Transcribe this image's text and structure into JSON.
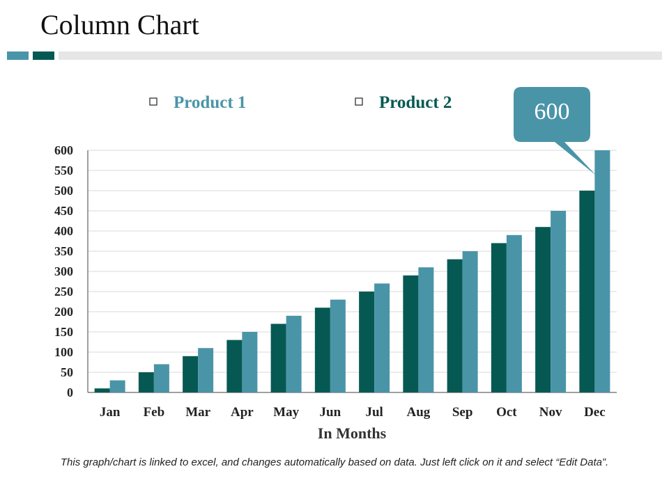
{
  "page": {
    "title": "Column Chart",
    "footer_note": "This graph/chart is linked to excel, and changes automatically based on data. Just left click on it and select “Edit Data”."
  },
  "colors": {
    "product1": "#4a94a8",
    "product2": "#065952",
    "gridline": "#d9d9d9",
    "axis": "#404040",
    "callout": "#4a94a8"
  },
  "chart_data": {
    "type": "bar",
    "title": "",
    "xlabel": "In Months",
    "ylabel": "",
    "ylim": [
      0,
      600
    ],
    "yticks": [
      0,
      50,
      100,
      150,
      200,
      250,
      300,
      350,
      400,
      450,
      500,
      550,
      600
    ],
    "grid": true,
    "legend_position": "top",
    "categories": [
      "Jan",
      "Feb",
      "Mar",
      "Apr",
      "May",
      "Jun",
      "Jul",
      "Aug",
      "Sep",
      "Oct",
      "Nov",
      "Dec"
    ],
    "series": [
      {
        "name": "Product 2",
        "values": [
          10,
          50,
          90,
          130,
          170,
          210,
          250,
          290,
          330,
          370,
          410,
          500
        ]
      },
      {
        "name": "Product 1",
        "values": [
          30,
          70,
          110,
          150,
          190,
          230,
          270,
          310,
          350,
          390,
          450,
          600
        ]
      }
    ],
    "legend": [
      "Product 1",
      "Product 2"
    ],
    "annotation": {
      "text": "600",
      "series": "Product 1",
      "category": "Dec"
    }
  }
}
